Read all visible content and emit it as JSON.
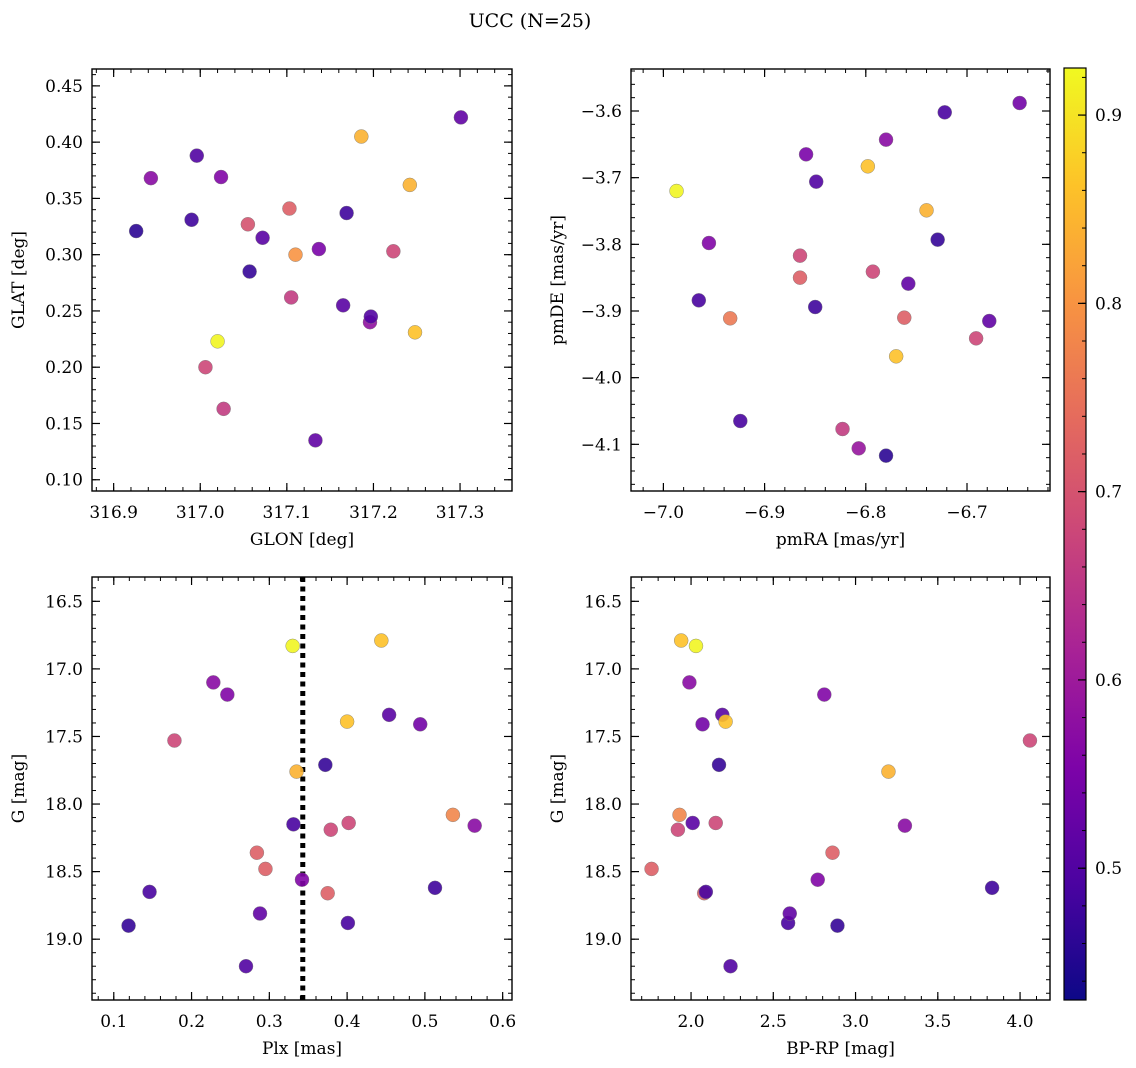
{
  "figure": {
    "title": "UCC (N=25)"
  },
  "colorbar": {
    "cmap": "plasma",
    "min": 0.43,
    "max": 0.925,
    "ticks": [
      0.5,
      0.6,
      0.7,
      0.8,
      0.9
    ],
    "tick_labels": [
      "0.5",
      "0.6",
      "0.7",
      "0.8",
      "0.9"
    ]
  },
  "chart_data": [
    {
      "type": "scatter",
      "id": "glon-glat",
      "xlabel": "GLON [deg]",
      "ylabel": "GLAT [deg]",
      "xlim": [
        316.875,
        317.36
      ],
      "ylim": [
        0.09,
        0.465
      ],
      "xticks": [
        316.9,
        317.0,
        317.1,
        317.2,
        317.3
      ],
      "xtick_labels": [
        "316.9",
        "317.0",
        "317.1",
        "317.2",
        "317.3"
      ],
      "yticks": [
        0.1,
        0.15,
        0.2,
        0.25,
        0.3,
        0.35,
        0.4,
        0.45
      ],
      "ytick_labels": [
        "0.10",
        "0.15",
        "0.20",
        "0.25",
        "0.30",
        "0.35",
        "0.40",
        "0.45"
      ],
      "points": [
        {
          "x": 316.926,
          "y": 0.321,
          "c": 0.46
        },
        {
          "x": 316.943,
          "y": 0.368,
          "c": 0.57
        },
        {
          "x": 316.99,
          "y": 0.331,
          "c": 0.48
        },
        {
          "x": 316.996,
          "y": 0.388,
          "c": 0.5
        },
        {
          "x": 317.006,
          "y": 0.2,
          "c": 0.68
        },
        {
          "x": 317.02,
          "y": 0.223,
          "c": 0.92
        },
        {
          "x": 317.024,
          "y": 0.369,
          "c": 0.56
        },
        {
          "x": 317.027,
          "y": 0.163,
          "c": 0.66
        },
        {
          "x": 317.055,
          "y": 0.327,
          "c": 0.7
        },
        {
          "x": 317.057,
          "y": 0.285,
          "c": 0.47
        },
        {
          "x": 317.072,
          "y": 0.315,
          "c": 0.51
        },
        {
          "x": 317.103,
          "y": 0.341,
          "c": 0.72
        },
        {
          "x": 317.105,
          "y": 0.262,
          "c": 0.66
        },
        {
          "x": 317.11,
          "y": 0.3,
          "c": 0.8
        },
        {
          "x": 317.133,
          "y": 0.135,
          "c": 0.52
        },
        {
          "x": 317.137,
          "y": 0.305,
          "c": 0.55
        },
        {
          "x": 317.165,
          "y": 0.255,
          "c": 0.51
        },
        {
          "x": 317.169,
          "y": 0.337,
          "c": 0.48
        },
        {
          "x": 317.186,
          "y": 0.405,
          "c": 0.84
        },
        {
          "x": 317.196,
          "y": 0.24,
          "c": 0.58
        },
        {
          "x": 317.197,
          "y": 0.245,
          "c": 0.5
        },
        {
          "x": 317.223,
          "y": 0.303,
          "c": 0.68
        },
        {
          "x": 317.242,
          "y": 0.362,
          "c": 0.84
        },
        {
          "x": 317.248,
          "y": 0.231,
          "c": 0.86
        },
        {
          "x": 317.301,
          "y": 0.422,
          "c": 0.52
        }
      ]
    },
    {
      "type": "scatter",
      "id": "pmra-pmde",
      "xlabel": "pmRA [mas/yr]",
      "ylabel": "pmDE [mas/yr]",
      "xlim": [
        -7.032,
        -6.618
      ],
      "ylim": [
        -4.17,
        -3.537
      ],
      "xticks": [
        -7.0,
        -6.9,
        -6.8,
        -6.7
      ],
      "xtick_labels": [
        "−7.0",
        "−6.9",
        "−6.8",
        "−6.7"
      ],
      "yticks": [
        -4.1,
        -4.0,
        -3.9,
        -3.8,
        -3.7,
        -3.6
      ],
      "ytick_labels": [
        "−4.1",
        "−4.0",
        "−3.9",
        "−3.8",
        "−3.7",
        "−3.6"
      ],
      "points": [
        {
          "x": -6.987,
          "y": -3.72,
          "c": 0.92
        },
        {
          "x": -6.965,
          "y": -3.884,
          "c": 0.49
        },
        {
          "x": -6.955,
          "y": -3.798,
          "c": 0.56
        },
        {
          "x": -6.934,
          "y": -3.911,
          "c": 0.76
        },
        {
          "x": -6.924,
          "y": -4.065,
          "c": 0.49
        },
        {
          "x": -6.865,
          "y": -3.817,
          "c": 0.68
        },
        {
          "x": -6.865,
          "y": -3.85,
          "c": 0.72
        },
        {
          "x": -6.859,
          "y": -3.665,
          "c": 0.55
        },
        {
          "x": -6.85,
          "y": -3.894,
          "c": 0.48
        },
        {
          "x": -6.849,
          "y": -3.706,
          "c": 0.5
        },
        {
          "x": -6.823,
          "y": -4.077,
          "c": 0.66
        },
        {
          "x": -6.807,
          "y": -4.106,
          "c": 0.59
        },
        {
          "x": -6.798,
          "y": -3.683,
          "c": 0.86
        },
        {
          "x": -6.793,
          "y": -3.841,
          "c": 0.68
        },
        {
          "x": -6.78,
          "y": -3.643,
          "c": 0.57
        },
        {
          "x": -6.78,
          "y": -4.117,
          "c": 0.46
        },
        {
          "x": -6.77,
          "y": -3.968,
          "c": 0.86
        },
        {
          "x": -6.762,
          "y": -3.91,
          "c": 0.72
        },
        {
          "x": -6.758,
          "y": -3.859,
          "c": 0.52
        },
        {
          "x": -6.74,
          "y": -3.749,
          "c": 0.84
        },
        {
          "x": -6.729,
          "y": -3.793,
          "c": 0.47
        },
        {
          "x": -6.722,
          "y": -3.602,
          "c": 0.49
        },
        {
          "x": -6.691,
          "y": -3.941,
          "c": 0.68
        },
        {
          "x": -6.678,
          "y": -3.915,
          "c": 0.52
        },
        {
          "x": -6.648,
          "y": -3.588,
          "c": 0.54
        }
      ]
    },
    {
      "type": "scatter",
      "id": "plx-g",
      "xlabel": "Plx [mas]",
      "ylabel": "G [mag]",
      "xlim": [
        0.072,
        0.612
      ],
      "ylim": [
        19.45,
        16.32
      ],
      "xticks": [
        0.1,
        0.2,
        0.3,
        0.4,
        0.5,
        0.6
      ],
      "xtick_labels": [
        "0.1",
        "0.2",
        "0.3",
        "0.4",
        "0.5",
        "0.6"
      ],
      "yticks": [
        16.5,
        17.0,
        17.5,
        18.0,
        18.5,
        19.0
      ],
      "ytick_labels": [
        "16.5",
        "17.0",
        "17.5",
        "18.0",
        "18.5",
        "19.0"
      ],
      "vline": 0.343,
      "points": [
        {
          "x": 0.119,
          "y": 18.9,
          "c": 0.47
        },
        {
          "x": 0.146,
          "y": 18.65,
          "c": 0.49
        },
        {
          "x": 0.178,
          "y": 17.53,
          "c": 0.68
        },
        {
          "x": 0.228,
          "y": 17.1,
          "c": 0.57
        },
        {
          "x": 0.246,
          "y": 17.19,
          "c": 0.56
        },
        {
          "x": 0.27,
          "y": 19.2,
          "c": 0.5
        },
        {
          "x": 0.284,
          "y": 18.36,
          "c": 0.72
        },
        {
          "x": 0.288,
          "y": 18.81,
          "c": 0.52
        },
        {
          "x": 0.295,
          "y": 18.48,
          "c": 0.72
        },
        {
          "x": 0.33,
          "y": 16.83,
          "c": 0.92
        },
        {
          "x": 0.331,
          "y": 18.15,
          "c": 0.49
        },
        {
          "x": 0.335,
          "y": 17.76,
          "c": 0.84
        },
        {
          "x": 0.342,
          "y": 18.56,
          "c": 0.56
        },
        {
          "x": 0.372,
          "y": 17.71,
          "c": 0.47
        },
        {
          "x": 0.375,
          "y": 18.66,
          "c": 0.72
        },
        {
          "x": 0.379,
          "y": 18.19,
          "c": 0.68
        },
        {
          "x": 0.4,
          "y": 17.39,
          "c": 0.86
        },
        {
          "x": 0.401,
          "y": 18.88,
          "c": 0.49
        },
        {
          "x": 0.402,
          "y": 18.14,
          "c": 0.68
        },
        {
          "x": 0.444,
          "y": 16.79,
          "c": 0.86
        },
        {
          "x": 0.454,
          "y": 17.34,
          "c": 0.51
        },
        {
          "x": 0.494,
          "y": 17.41,
          "c": 0.54
        },
        {
          "x": 0.513,
          "y": 18.62,
          "c": 0.48
        },
        {
          "x": 0.536,
          "y": 18.08,
          "c": 0.78
        },
        {
          "x": 0.564,
          "y": 18.16,
          "c": 0.57
        }
      ]
    },
    {
      "type": "scatter",
      "id": "bprp-g",
      "xlabel": "BP-RP [mag]",
      "ylabel": "G [mag]",
      "xlim": [
        1.635,
        4.182
      ],
      "ylim": [
        19.45,
        16.32
      ],
      "xticks": [
        2.0,
        2.5,
        3.0,
        3.5,
        4.0
      ],
      "xtick_labels": [
        "2.0",
        "2.5",
        "3.0",
        "3.5",
        "4.0"
      ],
      "yticks": [
        16.5,
        17.0,
        17.5,
        18.0,
        18.5,
        19.0
      ],
      "ytick_labels": [
        "16.5",
        "17.0",
        "17.5",
        "18.0",
        "18.5",
        "19.0"
      ],
      "points": [
        {
          "x": 1.76,
          "y": 18.48,
          "c": 0.72
        },
        {
          "x": 1.92,
          "y": 18.19,
          "c": 0.68
        },
        {
          "x": 1.93,
          "y": 18.08,
          "c": 0.78
        },
        {
          "x": 1.94,
          "y": 16.79,
          "c": 0.86
        },
        {
          "x": 1.99,
          "y": 17.1,
          "c": 0.57
        },
        {
          "x": 2.01,
          "y": 18.14,
          "c": 0.51
        },
        {
          "x": 2.03,
          "y": 16.83,
          "c": 0.92
        },
        {
          "x": 2.07,
          "y": 17.41,
          "c": 0.54
        },
        {
          "x": 2.08,
          "y": 18.66,
          "c": 0.72
        },
        {
          "x": 2.09,
          "y": 18.65,
          "c": 0.49
        },
        {
          "x": 2.15,
          "y": 18.14,
          "c": 0.68
        },
        {
          "x": 2.17,
          "y": 17.71,
          "c": 0.47
        },
        {
          "x": 2.19,
          "y": 17.34,
          "c": 0.51
        },
        {
          "x": 2.21,
          "y": 17.39,
          "c": 0.86
        },
        {
          "x": 2.24,
          "y": 19.2,
          "c": 0.5
        },
        {
          "x": 2.59,
          "y": 18.88,
          "c": 0.49
        },
        {
          "x": 2.6,
          "y": 18.81,
          "c": 0.52
        },
        {
          "x": 2.77,
          "y": 18.56,
          "c": 0.56
        },
        {
          "x": 2.81,
          "y": 17.19,
          "c": 0.56
        },
        {
          "x": 2.86,
          "y": 18.36,
          "c": 0.72
        },
        {
          "x": 2.89,
          "y": 18.9,
          "c": 0.47
        },
        {
          "x": 3.2,
          "y": 17.76,
          "c": 0.84
        },
        {
          "x": 3.3,
          "y": 18.16,
          "c": 0.57
        },
        {
          "x": 3.83,
          "y": 18.62,
          "c": 0.48
        },
        {
          "x": 4.06,
          "y": 17.53,
          "c": 0.68
        }
      ]
    }
  ]
}
